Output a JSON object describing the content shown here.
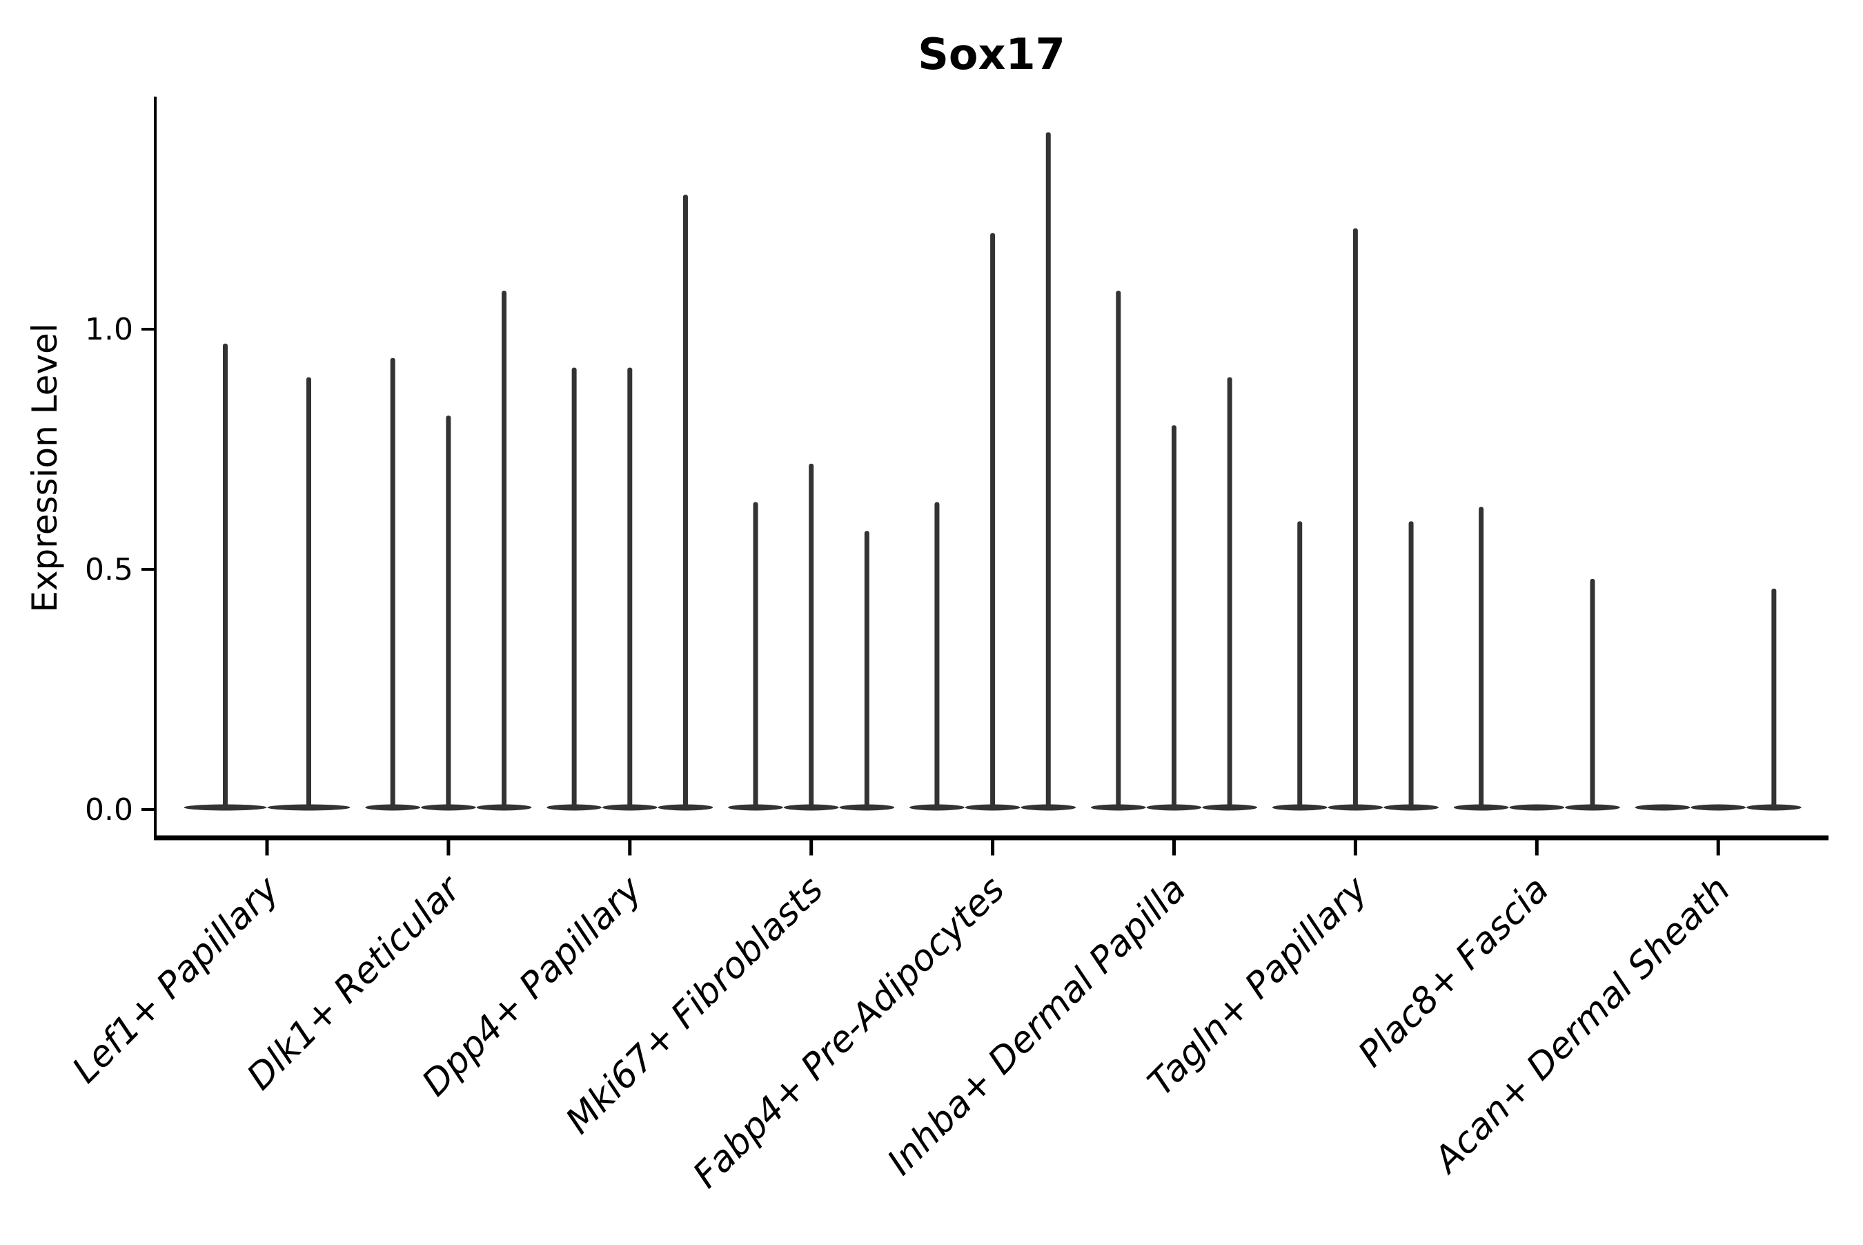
{
  "title": "Sox17",
  "ylabel": "Expression Level",
  "chart_data": {
    "type": "violin",
    "title": "Sox17",
    "xlabel": "",
    "ylabel": "Expression Level",
    "ylim": [
      -0.06,
      1.48
    ],
    "yticks": [
      0.0,
      0.5,
      1.0
    ],
    "ytick_labels": [
      "0.0",
      "0.5",
      "1.0"
    ],
    "grid": false,
    "legend": "none",
    "violin_color": "#333333",
    "axis_color": "#000000",
    "description": "Needle-shaped violins: bulk of distribution collapsed at 0 with a thin spike up to the max expression value per violin; violin_max lists the top of each spike (0 means fully flat violin).",
    "categories": [
      "Lef1+ Papillary",
      "Dlk1+ Reticular",
      "Dpp4+ Papillary",
      "Mki67+ Fibroblasts",
      "Fabp4+ Pre-Adipocytes",
      "Inhba+ Dermal Papilla",
      "Tagln+ Papillary",
      "Plac8+ Fascia",
      "Acan+ Dermal Sheath"
    ],
    "groups": [
      {
        "category": "Lef1+ Papillary",
        "violin_max": [
          0.97,
          0.9
        ]
      },
      {
        "category": "Dlk1+ Reticular",
        "violin_max": [
          0.94,
          0.82,
          1.08
        ]
      },
      {
        "category": "Dpp4+ Papillary",
        "violin_max": [
          0.92,
          0.92,
          1.28
        ]
      },
      {
        "category": "Mki67+ Fibroblasts",
        "violin_max": [
          0.64,
          0.72,
          0.58
        ]
      },
      {
        "category": "Fabp4+ Pre-Adipocytes",
        "violin_max": [
          0.64,
          1.2,
          1.41
        ]
      },
      {
        "category": "Inhba+ Dermal Papilla",
        "violin_max": [
          1.08,
          0.8,
          0.9
        ]
      },
      {
        "category": "Tagln+ Papillary",
        "violin_max": [
          0.6,
          1.21,
          0.6
        ]
      },
      {
        "category": "Plac8+ Fascia",
        "violin_max": [
          0.63,
          0.0,
          0.48
        ]
      },
      {
        "category": "Acan+ Dermal Sheath",
        "violin_max": [
          0.0,
          0.0,
          0.46
        ]
      }
    ]
  }
}
